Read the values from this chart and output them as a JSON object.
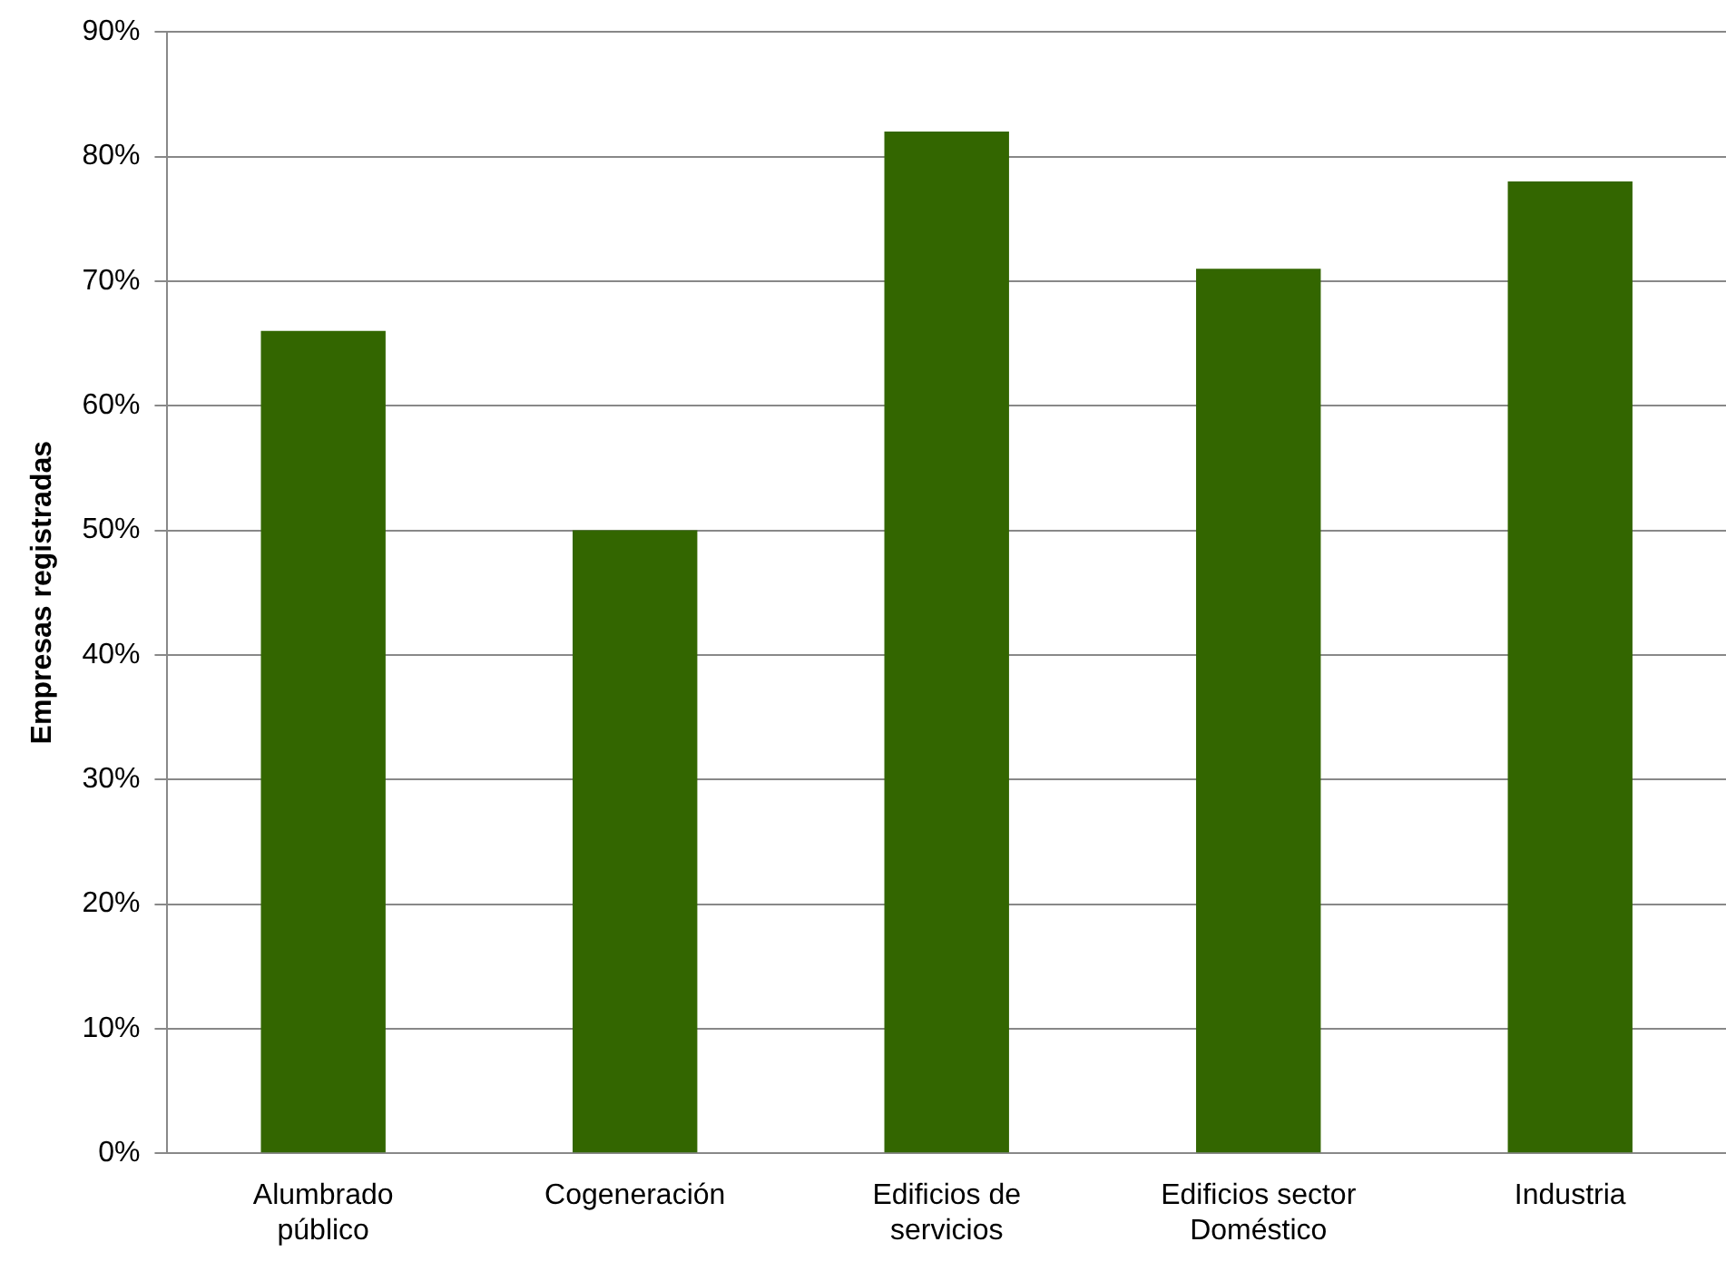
{
  "chart_data": {
    "type": "bar",
    "ylabel": "Empresas registradas",
    "categories": [
      "Alumbrado público",
      "Cogeneración",
      "Edificios de servicios",
      "Edificios sector Doméstico",
      "Industria"
    ],
    "values": [
      66,
      50,
      82,
      71,
      78
    ],
    "color": "#336600",
    "ylim": [
      0,
      90
    ],
    "yticks": [
      {
        "value": 0,
        "label": "0%"
      },
      {
        "value": 10,
        "label": "10%"
      },
      {
        "value": 20,
        "label": "20%"
      },
      {
        "value": 30,
        "label": "30%"
      },
      {
        "value": 40,
        "label": "40%"
      },
      {
        "value": 50,
        "label": "50%"
      },
      {
        "value": 60,
        "label": "60%"
      },
      {
        "value": 70,
        "label": "70%"
      },
      {
        "value": 80,
        "label": "80%"
      },
      {
        "value": 90,
        "label": "90%"
      }
    ],
    "grid": "y",
    "legend": false
  }
}
